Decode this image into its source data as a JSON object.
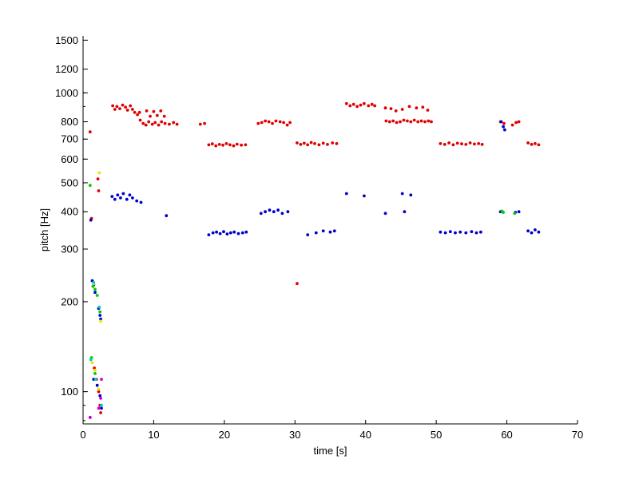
{
  "chart_data": {
    "type": "scatter",
    "xlabel": "time [s]",
    "ylabel": "pitch [Hz]",
    "xlim": [
      0,
      70
    ],
    "ylim": [
      78,
      1550
    ],
    "yscale": "log",
    "grid": false,
    "xticks": [
      0,
      10,
      20,
      30,
      40,
      50,
      60,
      70
    ],
    "yticks": [
      100,
      200,
      300,
      400,
      500,
      600,
      700,
      800,
      1000,
      1200,
      1500
    ],
    "colors": {
      "red": "#e00000",
      "blue": "#0000cc",
      "green": "#00cc00",
      "yellow": "#e6e600",
      "cyan": "#00cccc",
      "magenta": "#cc00cc"
    },
    "series": [
      {
        "color": "red",
        "points": [
          [
            4.2,
            905
          ],
          [
            4.5,
            880
          ],
          [
            4.8,
            900
          ],
          [
            5.2,
            885
          ],
          [
            5.6,
            910
          ],
          [
            6.0,
            895
          ],
          [
            6.3,
            875
          ],
          [
            6.7,
            905
          ],
          [
            7.0,
            880
          ],
          [
            7.3,
            860
          ],
          [
            7.7,
            845
          ],
          [
            8.1,
            810
          ],
          [
            8.5,
            790
          ],
          [
            8.9,
            780
          ],
          [
            9.3,
            800
          ],
          [
            9.8,
            785
          ],
          [
            10.2,
            795
          ],
          [
            10.7,
            780
          ],
          [
            11.1,
            800
          ],
          [
            11.6,
            790
          ],
          [
            12.2,
            785
          ],
          [
            12.8,
            795
          ],
          [
            13.3,
            785
          ],
          [
            8.0,
            860
          ],
          [
            9.0,
            870
          ],
          [
            10.0,
            865
          ],
          [
            11.0,
            870
          ],
          [
            9.5,
            835
          ],
          [
            10.5,
            840
          ],
          [
            11.5,
            835
          ],
          [
            16.6,
            785
          ],
          [
            17.2,
            790
          ],
          [
            17.8,
            670
          ],
          [
            18.3,
            675
          ],
          [
            18.8,
            665
          ],
          [
            19.3,
            672
          ],
          [
            19.8,
            668
          ],
          [
            20.3,
            676
          ],
          [
            20.8,
            670
          ],
          [
            21.3,
            665
          ],
          [
            21.8,
            673
          ],
          [
            22.4,
            668
          ],
          [
            23.0,
            670
          ],
          [
            24.8,
            790
          ],
          [
            25.3,
            795
          ],
          [
            25.8,
            805
          ],
          [
            26.3,
            800
          ],
          [
            26.8,
            790
          ],
          [
            27.3,
            805
          ],
          [
            27.9,
            800
          ],
          [
            28.4,
            795
          ],
          [
            28.9,
            780
          ],
          [
            29.3,
            795
          ],
          [
            30.3,
            680
          ],
          [
            30.8,
            672
          ],
          [
            31.3,
            678
          ],
          [
            31.8,
            670
          ],
          [
            32.3,
            682
          ],
          [
            32.8,
            676
          ],
          [
            33.4,
            670
          ],
          [
            34.0,
            678
          ],
          [
            34.6,
            672
          ],
          [
            35.3,
            680
          ],
          [
            35.9,
            676
          ],
          [
            37.3,
            920
          ],
          [
            37.8,
            905
          ],
          [
            38.3,
            915
          ],
          [
            38.8,
            900
          ],
          [
            39.3,
            910
          ],
          [
            39.8,
            920
          ],
          [
            40.4,
            905
          ],
          [
            40.9,
            915
          ],
          [
            41.3,
            905
          ],
          [
            42.8,
            890
          ],
          [
            43.6,
            885
          ],
          [
            44.3,
            870
          ],
          [
            45.2,
            880
          ],
          [
            46.2,
            900
          ],
          [
            47.2,
            890
          ],
          [
            48.1,
            895
          ],
          [
            48.8,
            875
          ],
          [
            42.9,
            805
          ],
          [
            43.4,
            800
          ],
          [
            43.9,
            805
          ],
          [
            44.4,
            795
          ],
          [
            44.9,
            800
          ],
          [
            45.4,
            810
          ],
          [
            45.9,
            805
          ],
          [
            46.4,
            800
          ],
          [
            46.9,
            810
          ],
          [
            47.4,
            800
          ],
          [
            47.9,
            805
          ],
          [
            48.4,
            800
          ],
          [
            48.9,
            805
          ],
          [
            49.3,
            800
          ],
          [
            50.6,
            676
          ],
          [
            51.2,
            672
          ],
          [
            51.8,
            680
          ],
          [
            52.4,
            670
          ],
          [
            53.0,
            678
          ],
          [
            53.6,
            675
          ],
          [
            54.2,
            672
          ],
          [
            54.8,
            680
          ],
          [
            55.4,
            674
          ],
          [
            56.0,
            676
          ],
          [
            56.5,
            672
          ],
          [
            59.1,
            800
          ],
          [
            59.6,
            790
          ],
          [
            60.8,
            780
          ],
          [
            61.3,
            795
          ],
          [
            61.7,
            800
          ],
          [
            63.0,
            680
          ],
          [
            63.5,
            672
          ],
          [
            64.0,
            676
          ],
          [
            64.5,
            670
          ],
          [
            30.3,
            230
          ],
          [
            1.0,
            740
          ],
          [
            2.1,
            515
          ],
          [
            2.2,
            470
          ],
          [
            1.2,
            380
          ],
          [
            1.6,
            120
          ],
          [
            1.9,
            110
          ],
          [
            2.2,
            100
          ],
          [
            2.4,
            90
          ],
          [
            2.5,
            85
          ]
        ]
      },
      {
        "color": "blue",
        "points": [
          [
            4.1,
            450
          ],
          [
            4.5,
            440
          ],
          [
            4.9,
            455
          ],
          [
            5.3,
            445
          ],
          [
            5.7,
            460
          ],
          [
            6.2,
            440
          ],
          [
            6.6,
            455
          ],
          [
            7.0,
            445
          ],
          [
            7.6,
            435
          ],
          [
            8.2,
            430
          ],
          [
            11.8,
            388
          ],
          [
            17.8,
            335
          ],
          [
            18.4,
            340
          ],
          [
            18.9,
            342
          ],
          [
            19.4,
            338
          ],
          [
            19.9,
            343
          ],
          [
            20.4,
            337
          ],
          [
            20.9,
            340
          ],
          [
            21.4,
            342
          ],
          [
            22.0,
            338
          ],
          [
            22.6,
            340
          ],
          [
            23.1,
            342
          ],
          [
            25.2,
            395
          ],
          [
            25.8,
            400
          ],
          [
            26.4,
            405
          ],
          [
            27.0,
            400
          ],
          [
            27.6,
            405
          ],
          [
            28.2,
            395
          ],
          [
            29.0,
            400
          ],
          [
            31.8,
            335
          ],
          [
            33.0,
            340
          ],
          [
            34.0,
            345
          ],
          [
            35.0,
            342
          ],
          [
            35.6,
            345
          ],
          [
            37.3,
            460
          ],
          [
            39.8,
            452
          ],
          [
            42.8,
            395
          ],
          [
            45.2,
            460
          ],
          [
            46.4,
            455
          ],
          [
            45.5,
            400
          ],
          [
            50.6,
            342
          ],
          [
            51.3,
            340
          ],
          [
            52.0,
            343
          ],
          [
            52.7,
            340
          ],
          [
            53.4,
            342
          ],
          [
            54.2,
            340
          ],
          [
            55.0,
            343
          ],
          [
            55.7,
            340
          ],
          [
            56.3,
            342
          ],
          [
            59.2,
            800
          ],
          [
            59.5,
            770
          ],
          [
            59.7,
            752
          ],
          [
            59.1,
            400
          ],
          [
            61.2,
            398
          ],
          [
            61.7,
            400
          ],
          [
            63.0,
            345
          ],
          [
            63.5,
            340
          ],
          [
            64.0,
            348
          ],
          [
            64.5,
            342
          ],
          [
            1.1,
            375
          ],
          [
            1.3,
            235
          ],
          [
            1.5,
            228
          ],
          [
            1.7,
            215
          ],
          [
            2.2,
            190
          ],
          [
            2.4,
            180
          ],
          [
            2.5,
            175
          ],
          [
            1.5,
            110
          ],
          [
            2.0,
            105
          ],
          [
            2.4,
            97
          ],
          [
            2.6,
            88
          ],
          [
            1.0,
            82
          ]
        ]
      },
      {
        "color": "green",
        "points": [
          [
            1.0,
            490
          ],
          [
            1.4,
            225
          ],
          [
            1.7,
            220
          ],
          [
            2.0,
            210
          ],
          [
            2.4,
            185
          ],
          [
            1.2,
            130
          ],
          [
            1.7,
            115
          ],
          [
            59.3,
            402
          ],
          [
            59.5,
            398
          ],
          [
            61.1,
            395
          ]
        ]
      },
      {
        "color": "yellow",
        "points": [
          [
            2.3,
            540
          ],
          [
            1.5,
            230
          ],
          [
            2.5,
            172
          ],
          [
            1.3,
            125
          ],
          [
            1.7,
            118
          ],
          [
            2.2,
            102
          ]
        ]
      },
      {
        "color": "cyan",
        "points": [
          [
            1.5,
            232
          ],
          [
            2.3,
            192
          ],
          [
            1.1,
            128
          ],
          [
            1.8,
            110
          ],
          [
            2.6,
            90
          ]
        ]
      },
      {
        "color": "magenta",
        "points": [
          [
            2.6,
            110
          ],
          [
            2.5,
            95
          ],
          [
            2.2,
            88
          ],
          [
            1.0,
            82
          ]
        ]
      }
    ]
  }
}
